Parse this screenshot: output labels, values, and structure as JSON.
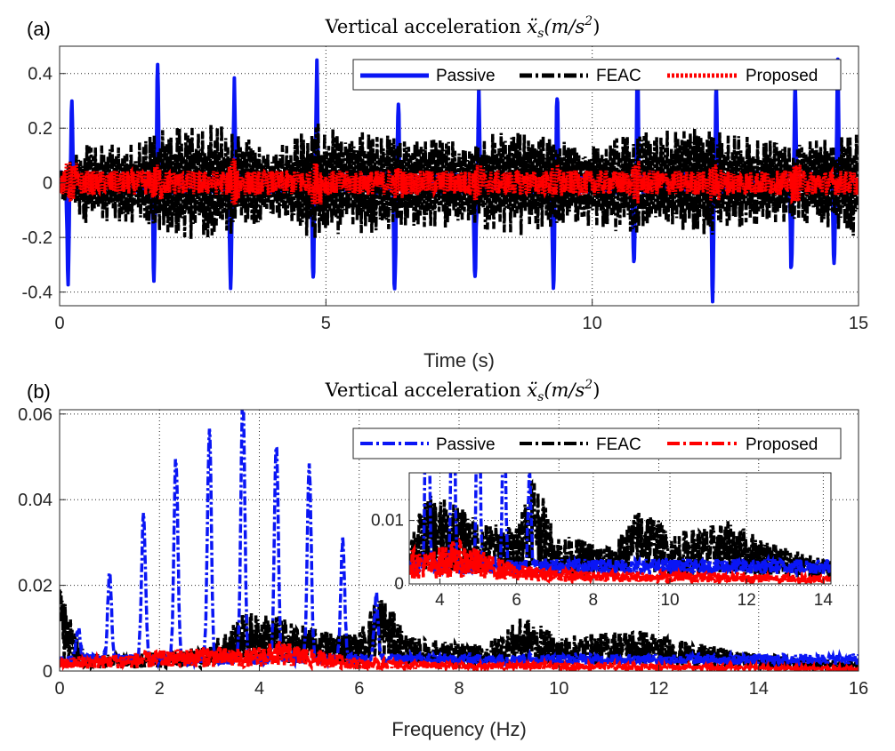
{
  "colors": {
    "passive": "#0a16f5",
    "feac": "#000000",
    "proposed": "#ff0000",
    "grid": "#262626",
    "axis": "#262626"
  },
  "chart_data": [
    {
      "type": "line",
      "panel_label": "(a)",
      "title": "Vertical acceleration ẍ_s(m/s²)",
      "title_text": "Vertical acceleration ",
      "title_symbol": "ẍ",
      "title_sub": "s",
      "title_unit": "(m/s",
      "title_exp": "2",
      "title_close": ")",
      "xlabel": "Time (s)",
      "ylabel": "",
      "xlim": [
        0,
        15
      ],
      "ylim": [
        -0.45,
        0.5
      ],
      "xticks": [
        "0",
        "5",
        "10",
        "15"
      ],
      "yticks": [
        "-0.4",
        "-0.2",
        "0",
        "0.2",
        "0.4"
      ],
      "grid": true,
      "legend": "top-right",
      "series": [
        {
          "name": "Passive",
          "line_style": "solid",
          "peaks": [
            [
              0.22,
              0.31,
              -0.35
            ],
            [
              1.83,
              0.45,
              -0.34
            ],
            [
              3.27,
              0.36,
              -0.41
            ],
            [
              4.82,
              0.43,
              -0.34
            ],
            [
              6.35,
              0.32,
              -0.41
            ],
            [
              7.86,
              0.35,
              -0.34
            ],
            [
              9.33,
              0.33,
              -0.41
            ],
            [
              10.84,
              0.44,
              -0.32
            ],
            [
              12.32,
              0.38,
              -0.41
            ],
            [
              13.8,
              0.34,
              -0.32
            ],
            [
              14.6,
              0.46,
              -0.3
            ]
          ],
          "band": 0.04
        },
        {
          "name": "FEAC",
          "line_style": "dash-dot",
          "envelope": [
            [
              0,
              0.05
            ],
            [
              0.5,
              0.15
            ],
            [
              1.5,
              0.15
            ],
            [
              2.0,
              0.2
            ],
            [
              3.0,
              0.22
            ],
            [
              4.0,
              0.12
            ],
            [
              4.8,
              0.22
            ],
            [
              6.0,
              0.18
            ],
            [
              7.8,
              0.16
            ],
            [
              8.5,
              0.2
            ],
            [
              9.5,
              0.16
            ],
            [
              10.5,
              0.18
            ],
            [
              12.0,
              0.2
            ],
            [
              13.8,
              0.14
            ],
            [
              15,
              0.2
            ]
          ]
        },
        {
          "name": "Proposed",
          "line_style": "dotted",
          "band": 0.045,
          "spikes": [
            [
              0.22,
              0.08
            ],
            [
              1.83,
              0.07
            ],
            [
              3.27,
              0.09
            ],
            [
              4.82,
              0.08
            ],
            [
              6.35,
              0.06
            ],
            [
              7.86,
              0.07
            ],
            [
              9.33,
              0.07
            ],
            [
              10.84,
              0.08
            ],
            [
              12.32,
              0.07
            ],
            [
              13.8,
              0.07
            ]
          ]
        }
      ]
    },
    {
      "type": "line",
      "panel_label": "(b)",
      "title": "Vertical acceleration ẍ_s(m/s²)",
      "title_text": "Vertical acceleration ",
      "title_symbol": "ẍ",
      "title_sub": "s",
      "title_unit": "(m/s",
      "title_exp": "2",
      "title_close": ")",
      "xlabel": "Frequency (Hz)",
      "ylabel": "",
      "xlim": [
        0,
        16
      ],
      "ylim": [
        0,
        0.061
      ],
      "xticks": [
        "0",
        "2",
        "4",
        "6",
        "8",
        "10",
        "12",
        "14",
        "16"
      ],
      "yticks": [
        "0",
        "0.02",
        "0.04",
        "0.06"
      ],
      "grid": true,
      "legend": "top-right",
      "series": [
        {
          "name": "Passive",
          "line_style": "dash-dot",
          "peaks": [
            [
              0.37,
              0.007
            ],
            [
              1.0,
              0.0195
            ],
            [
              1.68,
              0.0335
            ],
            [
              2.33,
              0.047
            ],
            [
              3.0,
              0.0535
            ],
            [
              3.67,
              0.062
            ],
            [
              4.34,
              0.0505
            ],
            [
              5.0,
              0.045
            ],
            [
              5.67,
              0.0275
            ],
            [
              6.34,
              0.015
            ]
          ]
        },
        {
          "name": "FEAC",
          "line_style": "dash-dot",
          "envelope": [
            [
              0,
              0.019
            ],
            [
              0.5,
              0.004
            ],
            [
              1.5,
              0.004
            ],
            [
              3.0,
              0.006
            ],
            [
              3.7,
              0.014
            ],
            [
              4.4,
              0.013
            ],
            [
              5.0,
              0.01
            ],
            [
              6.0,
              0.009
            ],
            [
              6.4,
              0.019
            ],
            [
              7.0,
              0.008
            ],
            [
              8.5,
              0.006
            ],
            [
              9.3,
              0.013
            ],
            [
              10.0,
              0.008
            ],
            [
              11.6,
              0.01
            ],
            [
              12.5,
              0.007
            ],
            [
              14.0,
              0.004
            ],
            [
              16,
              0.002
            ]
          ]
        },
        {
          "name": "Proposed",
          "line_style": "dash-dot",
          "envelope": [
            [
              0,
              0.003
            ],
            [
              2.3,
              0.005
            ],
            [
              3.0,
              0.006
            ],
            [
              3.7,
              0.005
            ],
            [
              4.4,
              0.007
            ],
            [
              6.0,
              0.003
            ],
            [
              8.0,
              0.002
            ],
            [
              10.0,
              0.002
            ],
            [
              16,
              0.001
            ]
          ]
        }
      ],
      "inset": {
        "xlim": [
          3.2,
          14.2
        ],
        "ylim": [
          0,
          0.0175
        ],
        "xticks": [
          "4",
          "6",
          "8",
          "10",
          "12",
          "14"
        ],
        "yticks": [
          "0",
          "0.01"
        ]
      }
    }
  ]
}
